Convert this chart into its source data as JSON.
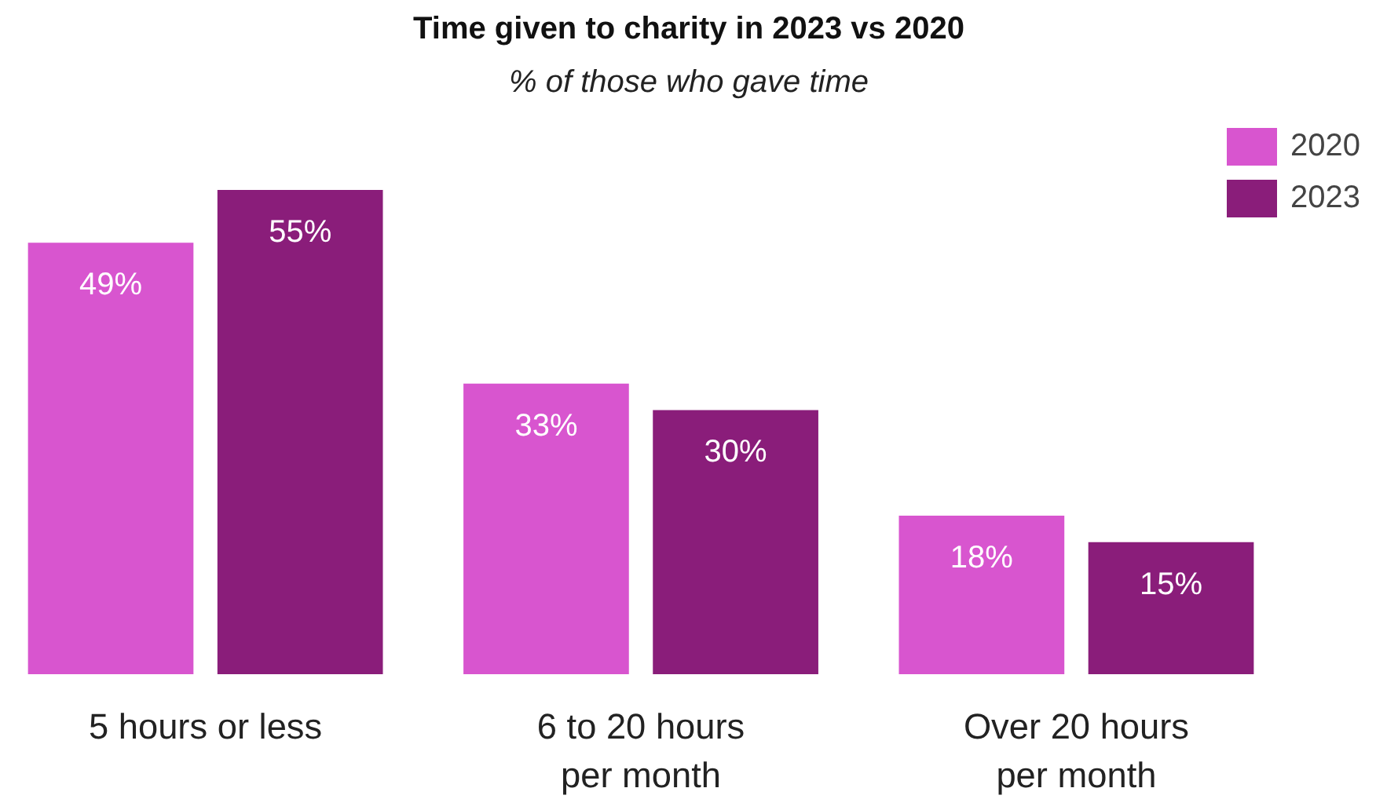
{
  "chart_data": {
    "type": "bar",
    "title": "Time given to charity in 2023 vs 2020",
    "subtitle": "% of those who gave time",
    "categories": [
      "5 hours or less",
      "6 to 20 hours\nper month",
      "Over 20 hours\nper month"
    ],
    "series": [
      {
        "name": "2020",
        "color": "#d855cf",
        "values": [
          49,
          33,
          18
        ],
        "value_labels": [
          "49%",
          "33%",
          "18%"
        ]
      },
      {
        "name": "2023",
        "color": "#8a1d7a",
        "values": [
          55,
          30,
          15
        ],
        "value_labels": [
          "55%",
          "30%",
          "15%"
        ]
      }
    ],
    "grid": false,
    "legend": "top right"
  }
}
